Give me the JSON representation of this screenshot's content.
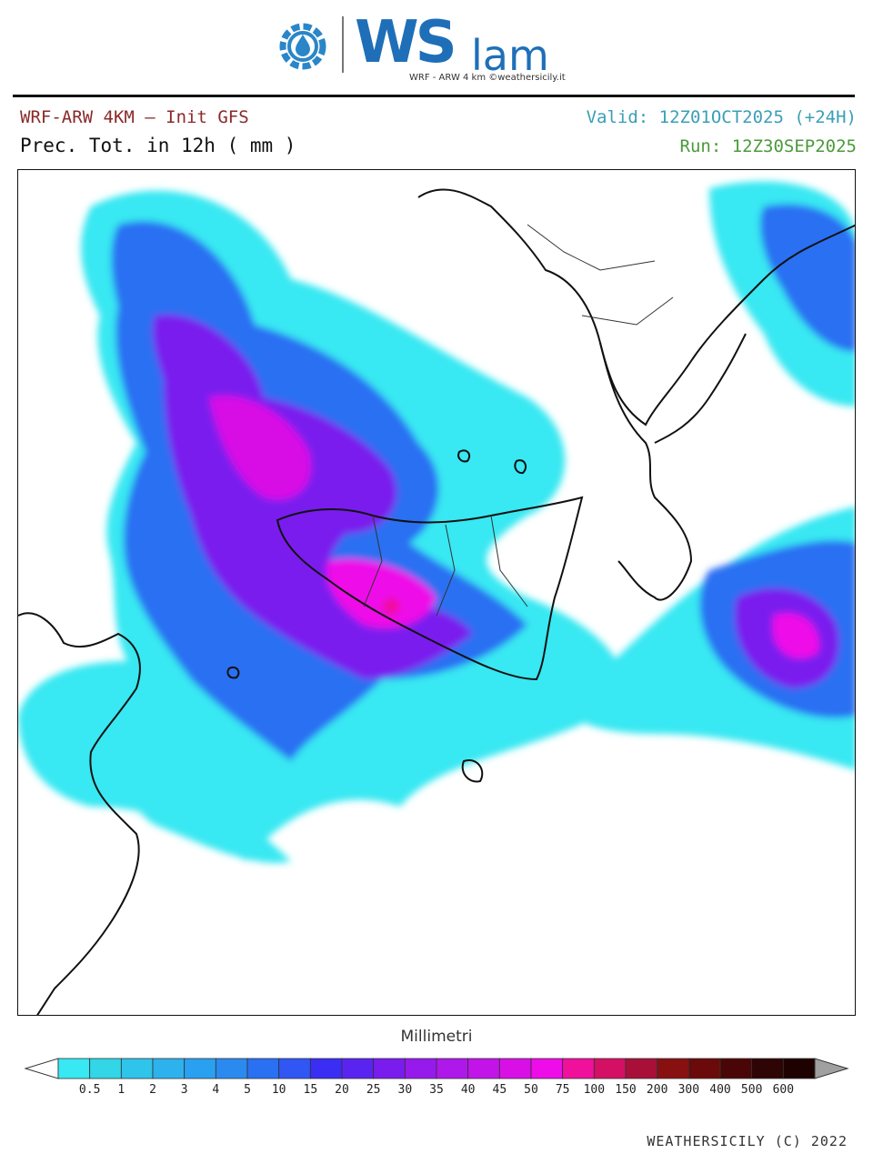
{
  "logo": {
    "brand_ws": "WS",
    "brand_lam": "lam",
    "subtitle": "WRF - ARW 4 km ©weathersicily.it",
    "gear_icon": "gear-drop-icon"
  },
  "header": {
    "model": "WRF-ARW 4KM – Init GFS",
    "parameter": "Prec. Tot. in 12h ( mm )",
    "valid": "Valid: 12Z01OCT2025 (+24H)",
    "run": "Run: 12Z30SEP2025"
  },
  "legend": {
    "title": "Millimetri",
    "levels": [
      "0.5",
      "1",
      "2",
      "3",
      "4",
      "5",
      "10",
      "15",
      "20",
      "25",
      "30",
      "35",
      "40",
      "45",
      "50",
      "75",
      "100",
      "150",
      "200",
      "300",
      "400",
      "500",
      "600"
    ],
    "colors": [
      "#38e8f2",
      "#33d6e6",
      "#2fc4ea",
      "#2db2ee",
      "#2aa0f0",
      "#2a8af0",
      "#2a70f2",
      "#3056f4",
      "#3a2ef4",
      "#5a24f0",
      "#7a1cee",
      "#961aec",
      "#ae18ea",
      "#c214e8",
      "#d810e6",
      "#ee0ce8",
      "#f0109c",
      "#d41064",
      "#a8103a",
      "#881010",
      "#6a0a0a",
      "#4a0606",
      "#2e0404",
      "#1e0202"
    ],
    "under_color": "#ffffff",
    "over_color": "#a0a0a0"
  },
  "footer": {
    "copyright": "WEATHERSICILY (C) 2022"
  }
}
